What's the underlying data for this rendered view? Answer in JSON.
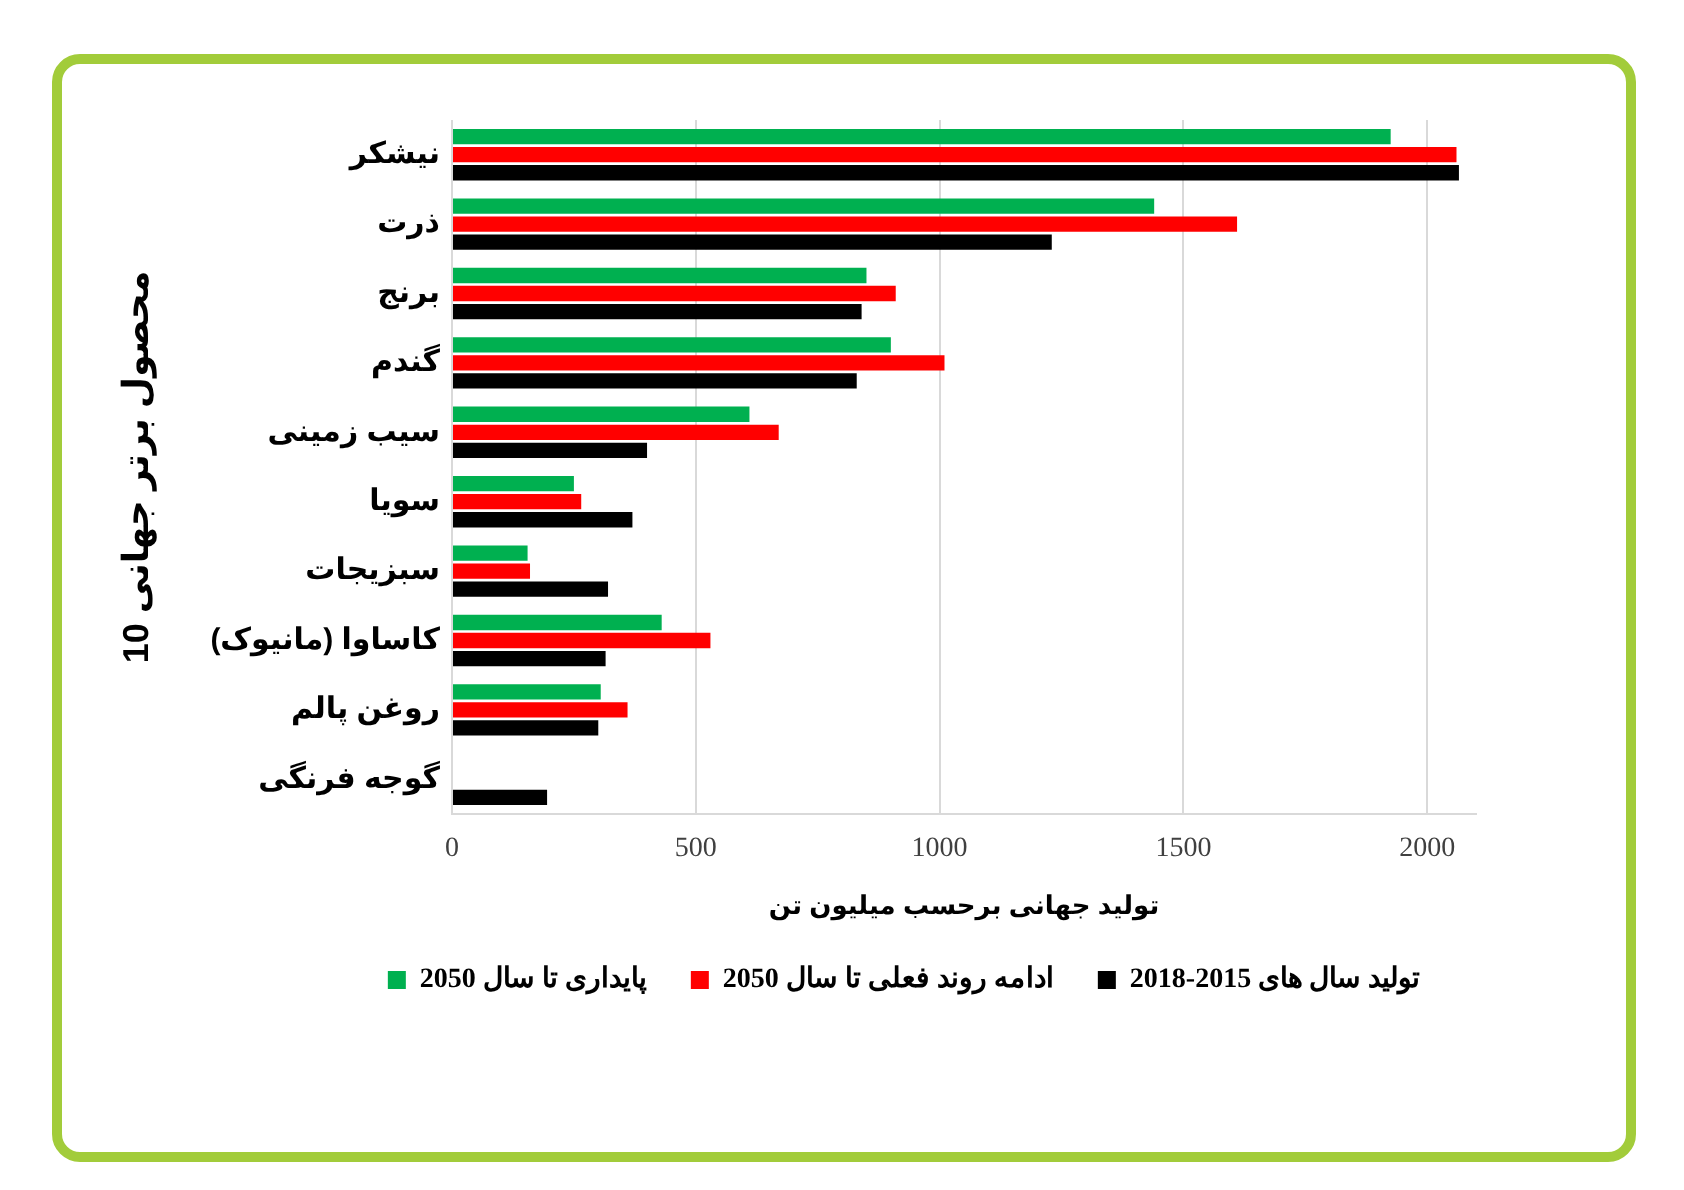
{
  "chart_data": {
    "type": "bar",
    "orientation": "horizontal",
    "categories": [
      "نیشکر",
      "ذرت",
      "برنج",
      "گندم",
      "سیب زمینی",
      "سویا",
      "سبزیجات",
      "کاساوا (مانیوک)",
      "روغن پالم",
      "گوجه فرنگی"
    ],
    "series": [
      {
        "name": "پایداری تا سال 2050",
        "color": "#00b050",
        "values": [
          1925,
          1440,
          850,
          900,
          610,
          250,
          155,
          430,
          305,
          null
        ]
      },
      {
        "name": "ادامه روند فعلی تا سال 2050",
        "color": "#ff0000",
        "values": [
          2060,
          1610,
          910,
          1010,
          670,
          265,
          160,
          530,
          360,
          null
        ]
      },
      {
        "name": "تولید سال های 2015-2018",
        "color": "#000000",
        "values": [
          2065,
          1230,
          840,
          830,
          400,
          370,
          320,
          315,
          300,
          195
        ]
      }
    ],
    "xlim": [
      0,
      2100
    ],
    "xticks": [
      0,
      500,
      1000,
      1500,
      2000
    ],
    "xlabel": "تولید جهانی برحسب میلیون تن",
    "ylabel": "10 محصول برتر جهانی",
    "grid": "x",
    "legend": "bottom"
  }
}
